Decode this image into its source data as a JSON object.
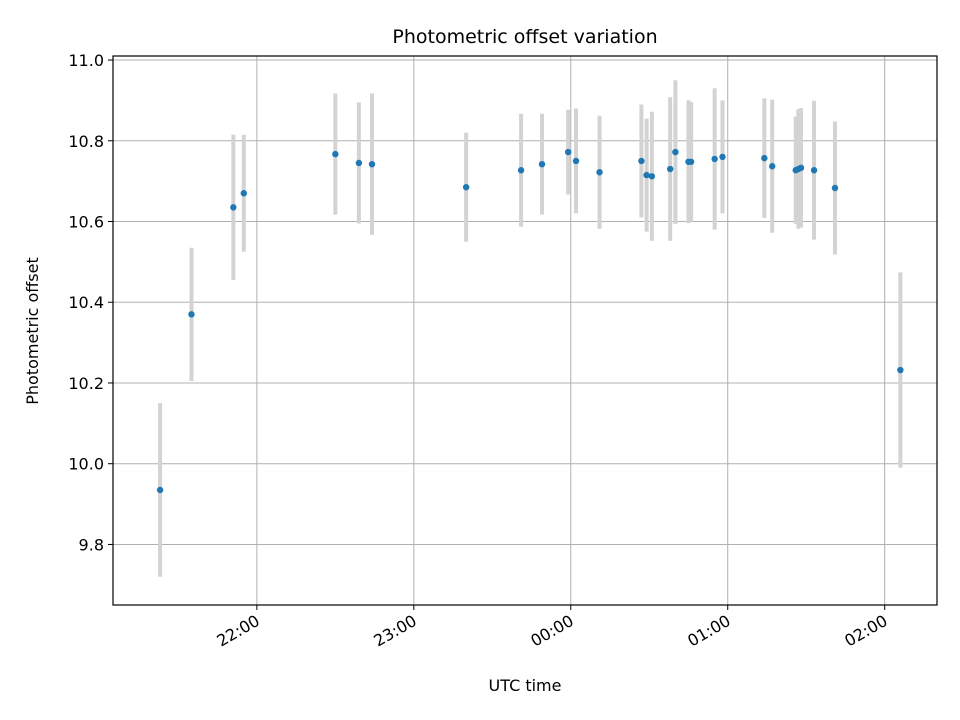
{
  "chart_data": {
    "type": "scatter",
    "title": "Photometric offset variation",
    "xlabel": "UTC time",
    "ylabel": "Photometric offset",
    "x_unit": "UTC time (HH:MM)",
    "xlim": [
      "21:05",
      "02:20"
    ],
    "ylim": [
      9.65,
      11.01
    ],
    "x_ticks": [
      "22:00",
      "23:00",
      "00:00",
      "01:00",
      "02:00"
    ],
    "y_ticks": [
      "9.8",
      "10.0",
      "10.2",
      "10.4",
      "10.6",
      "10.8",
      "11.0"
    ],
    "grid": true,
    "point_color": "#1f77b4",
    "errorbar_color": "#d3d3d3",
    "points": [
      {
        "x": "21:23",
        "y": 9.935,
        "err": 0.215
      },
      {
        "x": "21:35",
        "y": 10.37,
        "err": 0.165
      },
      {
        "x": "21:51",
        "y": 10.635,
        "err": 0.18
      },
      {
        "x": "21:55",
        "y": 10.67,
        "err": 0.145
      },
      {
        "x": "22:30",
        "y": 10.767,
        "err": 0.15
      },
      {
        "x": "22:39",
        "y": 10.745,
        "err": 0.15
      },
      {
        "x": "22:44",
        "y": 10.742,
        "err": 0.175
      },
      {
        "x": "23:20",
        "y": 10.685,
        "err": 0.135
      },
      {
        "x": "23:41",
        "y": 10.727,
        "err": 0.14
      },
      {
        "x": "23:49",
        "y": 10.742,
        "err": 0.125
      },
      {
        "x": "23:59",
        "y": 10.772,
        "err": 0.105
      },
      {
        "x": "00:02",
        "y": 10.75,
        "err": 0.13
      },
      {
        "x": "00:11",
        "y": 10.722,
        "err": 0.14
      },
      {
        "x": "00:27",
        "y": 10.75,
        "err": 0.14
      },
      {
        "x": "00:29",
        "y": 10.715,
        "err": 0.14
      },
      {
        "x": "00:31",
        "y": 10.712,
        "err": 0.16
      },
      {
        "x": "00:38",
        "y": 10.73,
        "err": 0.178
      },
      {
        "x": "00:40",
        "y": 10.772,
        "err": 0.178
      },
      {
        "x": "00:45",
        "y": 10.748,
        "err": 0.152
      },
      {
        "x": "00:46",
        "y": 10.748,
        "err": 0.148
      },
      {
        "x": "00:55",
        "y": 10.755,
        "err": 0.175
      },
      {
        "x": "00:58",
        "y": 10.76,
        "err": 0.14
      },
      {
        "x": "01:14",
        "y": 10.757,
        "err": 0.148
      },
      {
        "x": "01:17",
        "y": 10.737,
        "err": 0.165
      },
      {
        "x": "01:26",
        "y": 10.727,
        "err": 0.133
      },
      {
        "x": "01:27",
        "y": 10.73,
        "err": 0.148
      },
      {
        "x": "01:28",
        "y": 10.733,
        "err": 0.148
      },
      {
        "x": "01:33",
        "y": 10.727,
        "err": 0.172
      },
      {
        "x": "01:41",
        "y": 10.683,
        "err": 0.165
      },
      {
        "x": "02:06",
        "y": 10.232,
        "err": 0.242
      }
    ]
  }
}
